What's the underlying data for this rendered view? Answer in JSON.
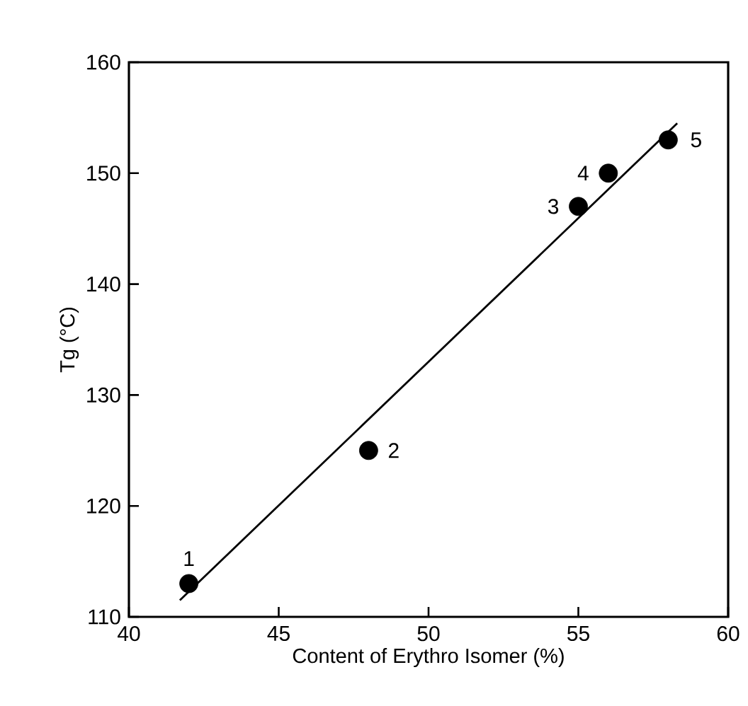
{
  "chart_data": {
    "type": "scatter",
    "xlabel": "Content of Erythro Isomer (%)",
    "ylabel": "Tg (°C)",
    "xlim": [
      40,
      60
    ],
    "xticks": [
      40,
      45,
      50,
      55,
      60
    ],
    "ylim": [
      110,
      160
    ],
    "yticks": [
      110,
      120,
      130,
      140,
      150,
      160
    ],
    "marker": "circle",
    "grid": false,
    "series": [
      {
        "color": "#000000",
        "x": [
          42,
          48,
          55,
          56,
          58
        ],
        "values": [
          113,
          125,
          147,
          150,
          153
        ]
      },
      {
        "type": "line",
        "color": "#000000",
        "x": [
          41.7,
          58.3
        ],
        "values": [
          111.5,
          154.5
        ],
        "marker": "none",
        "line_style": "solid"
      }
    ],
    "annotations": [
      {
        "text": "1",
        "x": 42,
        "y": 113
      },
      {
        "text": "2",
        "x": 48,
        "y": 125
      },
      {
        "text": "3",
        "x": 55,
        "y": 147
      },
      {
        "text": "4",
        "x": 56,
        "y": 150
      },
      {
        "text": "5",
        "x": 58,
        "y": 153
      }
    ]
  }
}
